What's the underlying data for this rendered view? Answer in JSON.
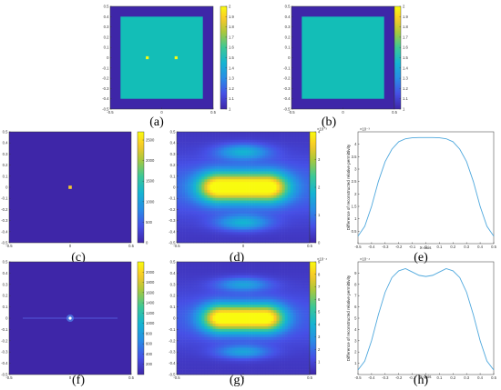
{
  "colors": {
    "parula_low": "#3e26a8",
    "parula_mid": "#13beb7",
    "parula_high": "#f9fb0e",
    "line_blue": "#4fa8dd"
  },
  "chart_data": [
    {
      "id": "a",
      "type": "heatmap",
      "panel_label": "(a)",
      "description": "square inclusion with two point defects",
      "xlim": [
        -0.5,
        0.5
      ],
      "ylim": [
        -0.5,
        0.5
      ],
      "xticks": [
        "-0.5",
        "0",
        "0.5"
      ],
      "yticks": [
        "0.5",
        "0.4",
        "0.3",
        "0.2",
        "0.1",
        "0",
        "-0.1",
        "-0.2",
        "-0.3",
        "-0.4",
        "-0.5"
      ],
      "background_value": 1,
      "square_value": 1.5,
      "square_half_width": 0.4,
      "points": [
        {
          "x": -0.14,
          "y": 0.0,
          "value": 2
        },
        {
          "x": 0.14,
          "y": 0.0,
          "value": 2
        }
      ],
      "colorbar": {
        "min": 1,
        "max": 2,
        "ticks": [
          "2",
          "1.9",
          "1.8",
          "1.7",
          "1.6",
          "1.5",
          "1.4",
          "1.3",
          "1.2",
          "1.1",
          "1"
        ]
      }
    },
    {
      "id": "b",
      "type": "heatmap",
      "panel_label": "(b)",
      "xlim": [
        -0.5,
        0.5
      ],
      "ylim": [
        -0.5,
        0.5
      ],
      "xticks": [
        "-0.5",
        "0",
        "0.5"
      ],
      "yticks": [
        "0.5",
        "0.4",
        "0.3",
        "0.2",
        "0.1",
        "0",
        "-0.1",
        "-0.2",
        "-0.3",
        "-0.4",
        "-0.5"
      ],
      "background_value": 1,
      "square_value": 1.5,
      "square_half_width": 0.4,
      "points": [],
      "colorbar": {
        "min": 1,
        "max": 2,
        "ticks": [
          "2",
          "1.9",
          "1.8",
          "1.7",
          "1.6",
          "1.5",
          "1.4",
          "1.3",
          "1.2",
          "1.1",
          "1"
        ]
      }
    },
    {
      "id": "c",
      "type": "heatmap",
      "panel_label": "(c)",
      "xlim": [
        -0.5,
        0.5
      ],
      "ylim": [
        -0.5,
        0.5
      ],
      "xticks": [
        "-0.5",
        "0",
        "0.5"
      ],
      "yticks": [
        "0.5",
        "0.4",
        "0.3",
        "0.2",
        "0.1",
        "0",
        "-0.1",
        "-0.2",
        "-0.3",
        "-0.4",
        "-0.5"
      ],
      "peak": {
        "x": 0.0,
        "y": 0.0,
        "value": 2500
      },
      "colorbar": {
        "min": 0,
        "max": 2700,
        "ticks": [
          "2500",
          "2000",
          "1500",
          "1000",
          "500",
          "0"
        ]
      }
    },
    {
      "id": "d",
      "type": "heatmap",
      "panel_label": "(d)",
      "xlim": [
        -0.5,
        0.5
      ],
      "ylim": [
        -0.5,
        0.5
      ],
      "xticks": [
        "-0.5",
        "0",
        "0.5"
      ],
      "yticks": [
        "0.5",
        "0.4",
        "0.3",
        "0.2",
        "0.1",
        "0",
        "-0.1",
        "-0.2",
        "-0.3",
        "-0.4",
        "-0.5"
      ],
      "colorbar": {
        "exponent": "×10⁻³",
        "min": 0,
        "max": 4,
        "ticks": [
          "4",
          "3",
          "2",
          "1",
          "0"
        ]
      }
    },
    {
      "id": "e",
      "type": "line",
      "panel_label": "(e)",
      "xlabel": "X-axis",
      "ylabel": "Difference of reconstructed relative permittivity",
      "xlim": [
        -0.5,
        0.5
      ],
      "ylim": [
        0,
        4.5
      ],
      "y_exponent": "×10⁻³",
      "xticks": [
        "-0.5",
        "-0.4",
        "-0.3",
        "-0.2",
        "-0.1",
        "0",
        "0.1",
        "0.2",
        "0.3",
        "0.4",
        "0.5"
      ],
      "yticks": [
        "4",
        "3.5",
        "3",
        "2.5",
        "2",
        "1.5",
        "1",
        "0.5"
      ],
      "series": [
        {
          "x": [
            -0.5,
            -0.45,
            -0.4,
            -0.35,
            -0.3,
            -0.25,
            -0.2,
            -0.15,
            -0.1,
            -0.05,
            0,
            0.05,
            0.1,
            0.15,
            0.2,
            0.25,
            0.3,
            0.35,
            0.4,
            0.45,
            0.5
          ],
          "values": [
            0.3,
            0.7,
            1.5,
            2.5,
            3.3,
            3.8,
            4.1,
            4.22,
            4.26,
            4.27,
            4.27,
            4.27,
            4.26,
            4.22,
            4.1,
            3.8,
            3.3,
            2.5,
            1.5,
            0.7,
            0.3
          ]
        }
      ]
    },
    {
      "id": "f",
      "type": "heatmap",
      "panel_label": "(f)",
      "xlim": [
        -0.5,
        0.5
      ],
      "ylim": [
        -0.5,
        0.5
      ],
      "xticks": [
        "-0.5",
        "0",
        "0.5"
      ],
      "yticks": [
        "0.5",
        "0.4",
        "0.3",
        "0.2",
        "0.1",
        "0",
        "-0.1",
        "-0.2",
        "-0.3",
        "-0.4",
        "-0.5"
      ],
      "peak": {
        "x": 0.0,
        "y": 0.0,
        "value": 2000
      },
      "colorbar": {
        "min": 0,
        "max": 2200,
        "ticks": [
          "2000",
          "1800",
          "1600",
          "1400",
          "1200",
          "1000",
          "800",
          "600",
          "400",
          "200"
        ]
      }
    },
    {
      "id": "g",
      "type": "heatmap",
      "panel_label": "(g)",
      "xlim": [
        -0.5,
        0.5
      ],
      "ylim": [
        -0.5,
        0.5
      ],
      "xticks": [
        "-0.5",
        "0",
        "0.5"
      ],
      "yticks": [
        "0.5",
        "0.4",
        "0.3",
        "0.2",
        "0.1",
        "0",
        "-0.1",
        "-0.2",
        "-0.3",
        "-0.4",
        "-0.5"
      ],
      "colorbar": {
        "exponent": "×10⁻⁴",
        "min": 0,
        "max": 9,
        "ticks": [
          "9",
          "8",
          "7",
          "6",
          "5",
          "4",
          "3",
          "2",
          "1"
        ]
      }
    },
    {
      "id": "h",
      "type": "line",
      "panel_label": "(h)",
      "xlabel": "X-axis",
      "ylabel": "Difference of reconstructed relative permittivity",
      "xlim": [
        -0.5,
        0.5
      ],
      "ylim": [
        0,
        10
      ],
      "y_exponent": "×10⁻⁴",
      "xticks": [
        "-0.5",
        "-0.4",
        "-0.3",
        "-0.2",
        "-0.1",
        "0",
        "0.1",
        "0.2",
        "0.3",
        "0.4",
        "0.5"
      ],
      "yticks": [
        "9",
        "8",
        "7",
        "6",
        "5",
        "4",
        "3",
        "2",
        "1"
      ],
      "series": [
        {
          "x": [
            -0.5,
            -0.45,
            -0.4,
            -0.35,
            -0.3,
            -0.25,
            -0.2,
            -0.15,
            -0.1,
            -0.05,
            0,
            0.05,
            0.1,
            0.15,
            0.2,
            0.25,
            0.3,
            0.35,
            0.4,
            0.45,
            0.5
          ],
          "values": [
            0.4,
            1.2,
            3.0,
            5.3,
            7.3,
            8.6,
            9.2,
            9.4,
            9.1,
            8.8,
            8.7,
            8.8,
            9.1,
            9.4,
            9.2,
            8.6,
            7.3,
            5.3,
            3.0,
            1.2,
            0.4
          ]
        }
      ]
    }
  ]
}
